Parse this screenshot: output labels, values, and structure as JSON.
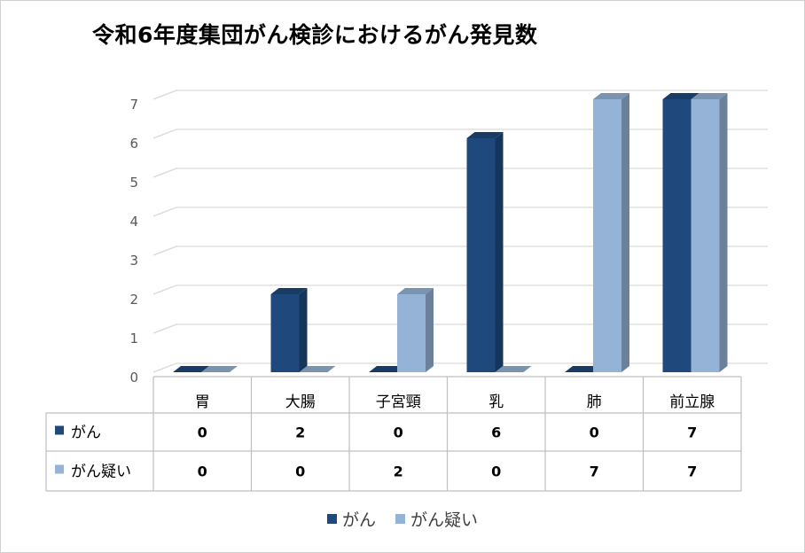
{
  "chart_data": {
    "type": "bar",
    "title": "令和6年度集団がん検診におけるがん発見数",
    "categories": [
      "胃",
      "大腸",
      "子宮頸",
      "乳",
      "肺",
      "前立腺"
    ],
    "series": [
      {
        "name": "がん",
        "values": [
          0,
          2,
          0,
          6,
          0,
          7
        ],
        "color": "#1f497d"
      },
      {
        "name": "がん疑い",
        "values": [
          0,
          0,
          2,
          0,
          7,
          7
        ],
        "color": "#95b3d7"
      }
    ],
    "ylim": [
      0,
      7
    ],
    "yticks": [
      "0",
      "1",
      "2",
      "3",
      "4",
      "5",
      "6",
      "7"
    ],
    "grid": true,
    "three_d": true,
    "data_table": true,
    "legend_position": "bottom"
  },
  "colors": {
    "gridline": "#d9d9d9",
    "table_border": "#bfbfbf",
    "tick_text": "#595959"
  }
}
